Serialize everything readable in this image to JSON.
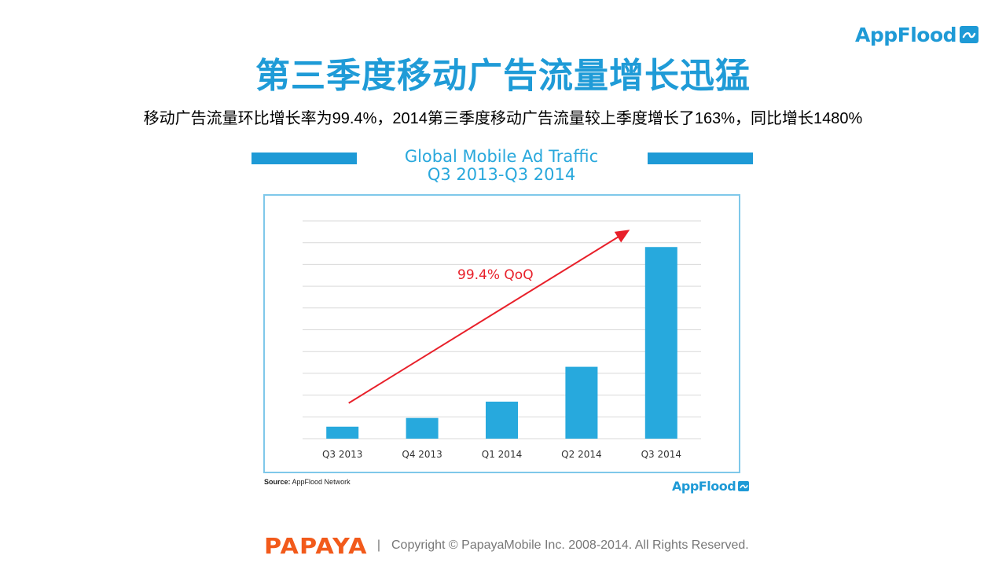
{
  "brand": {
    "logo_text": "AppFlood",
    "logo_icon": "appflood-wave-icon"
  },
  "page": {
    "title": "第三季度移动广告流量增长迅猛",
    "subtitle": "移动广告流量环比增长率为99.4%，2014第三季度移动广告流量较上季度增长了163%，同比增长1480%"
  },
  "chart_data": {
    "type": "bar",
    "title": "Global Mobile Ad Traffic",
    "subtitle": "Q3 2013-Q3 2014",
    "categories": [
      "Q3 2013",
      "Q4 2013",
      "Q1 2014",
      "Q2 2014",
      "Q3 2014"
    ],
    "values": [
      5.5,
      9.5,
      17,
      33,
      88
    ],
    "ylim": [
      0,
      100
    ],
    "y_ticks_labeled": false,
    "grid": true,
    "bar_color": "#27a9dd",
    "annotation": {
      "text": "99.4% QoQ",
      "color": "#e8202a",
      "arrow_from": "Q3 2013",
      "arrow_to": "Q3 2014"
    },
    "source_label": "Source:",
    "source_text": "AppFlood Network",
    "watermark": "AppFlood"
  },
  "footer": {
    "logo_text": "PAPAYA",
    "separator": "|",
    "copyright": "Copyright © PapayaMobile Inc. 2008-2014. All Rights Reserved."
  }
}
